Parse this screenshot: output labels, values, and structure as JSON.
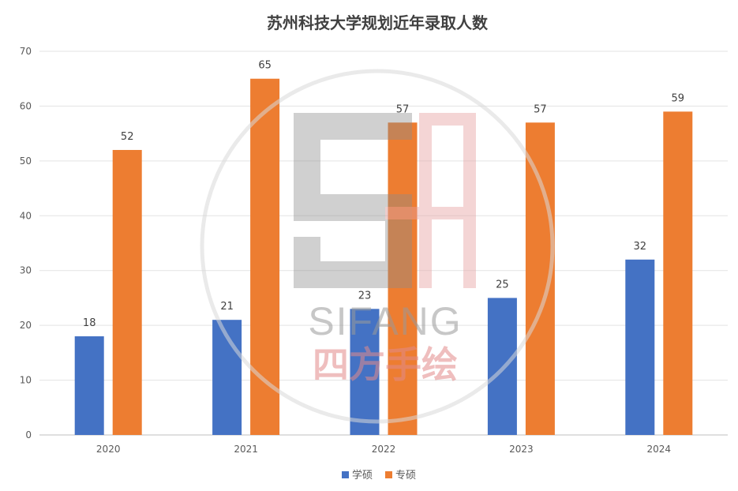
{
  "chart_data": {
    "type": "bar",
    "title": "苏州科技大学规划近年录取人数",
    "categories": [
      "2020",
      "2021",
      "2022",
      "2023",
      "2024"
    ],
    "series": [
      {
        "name": "学硕",
        "values": [
          18,
          21,
          23,
          25,
          32
        ],
        "color": "#4472c4"
      },
      {
        "name": "专硕",
        "values": [
          52,
          65,
          57,
          57,
          59
        ],
        "color": "#ed7d31"
      }
    ],
    "xlabel": "",
    "ylabel": "",
    "ylim": [
      0,
      70
    ],
    "yticks": [
      0,
      10,
      20,
      30,
      40,
      50,
      60,
      70
    ],
    "grid": true,
    "legend": "bottom",
    "data_labels": true
  },
  "watermark": {
    "text": "SIFANG",
    "cn_text": "四方手绘"
  }
}
